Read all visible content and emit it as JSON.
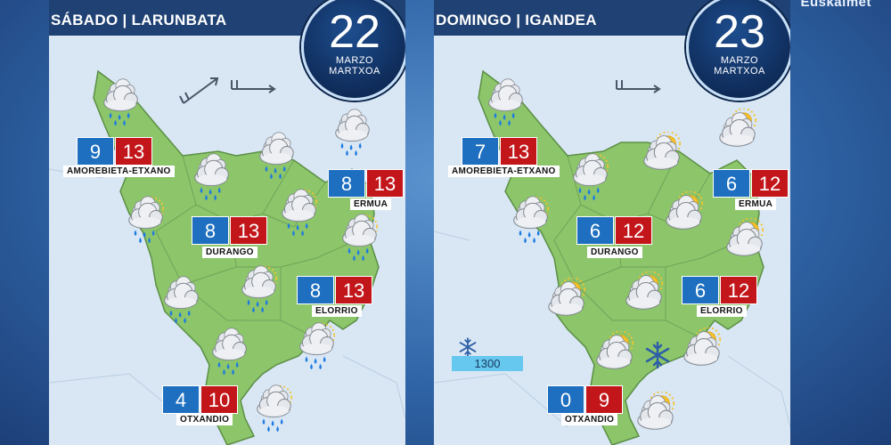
{
  "brand": "Euskalmet",
  "panels": [
    {
      "title": "SÁBADO | LARUNBATA",
      "day": "22",
      "month1": "MARZO",
      "month2": "MARTXOA",
      "towns": [
        {
          "name": "AMOREBIETA-ETXANO",
          "min": "9",
          "max": "13"
        },
        {
          "name": "ERMUA",
          "min": "8",
          "max": "13"
        },
        {
          "name": "DURANGO",
          "min": "8",
          "max": "13"
        },
        {
          "name": "ELORRIO",
          "min": "8",
          "max": "13"
        },
        {
          "name": "OTXANDIO",
          "min": "4",
          "max": "10"
        }
      ]
    },
    {
      "title": "DOMINGO | IGANDEA",
      "day": "23",
      "month1": "MARZO",
      "month2": "MARTXOA",
      "snow_level": "1300",
      "towns": [
        {
          "name": "AMOREBIETA-ETXANO",
          "min": "7",
          "max": "13"
        },
        {
          "name": "ERMUA",
          "min": "6",
          "max": "12"
        },
        {
          "name": "DURANGO",
          "min": "6",
          "max": "12"
        },
        {
          "name": "ELORRIO",
          "min": "6",
          "max": "12"
        },
        {
          "name": "OTXANDIO",
          "min": "0",
          "max": "9"
        }
      ]
    }
  ],
  "colors": {
    "map_land": "#8cc56a",
    "map_sea": "#d9e7f5",
    "min_box": "#1e6fc0",
    "max_box": "#c2161b",
    "header": "#1f4173"
  },
  "icons": {
    "rain": "rain-cloud-icon",
    "sun_rain": "sun-rain-cloud-icon",
    "sun_cloud": "sun-cloud-icon",
    "snowflake": "snowflake-icon",
    "wind": "wind-arrow-icon"
  }
}
